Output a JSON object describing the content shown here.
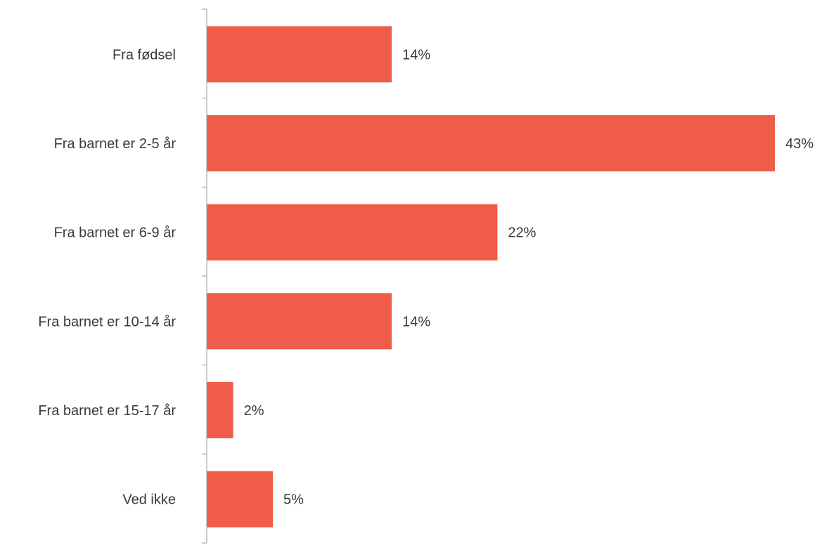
{
  "chart_data": {
    "type": "bar",
    "orientation": "horizontal",
    "categories": [
      "Fra fødsel",
      "Fra barnet er 2-5 år",
      "Fra barnet er 6-9 år",
      "Fra barnet er 10-14 år",
      "Fra barnet er 15-17 år",
      "Ved ikke"
    ],
    "values": [
      14,
      43,
      22,
      14,
      2,
      5
    ],
    "value_labels": [
      "14%",
      "43%",
      "22%",
      "14%",
      "2%",
      "5%"
    ],
    "unit": "%",
    "title": "",
    "xlabel": "",
    "ylabel": "",
    "xlim": [
      0,
      43
    ],
    "grid": false,
    "legend": "none",
    "colors": {
      "bar": "#ef5d4a",
      "axis": "#9a9a9a",
      "text": "#3a3a3a"
    }
  }
}
